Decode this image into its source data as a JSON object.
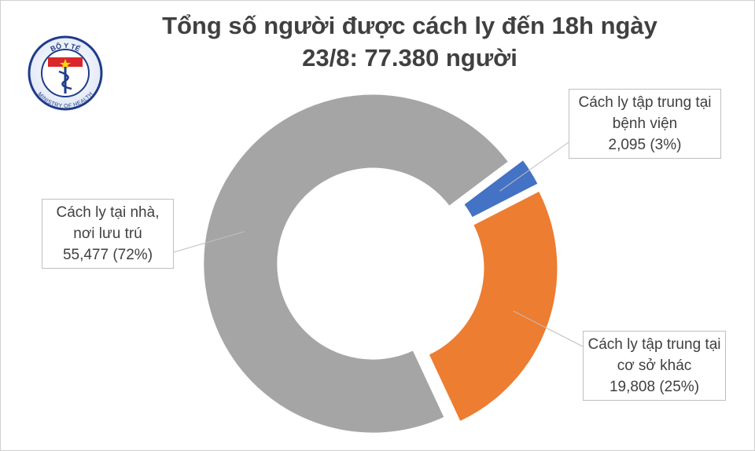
{
  "logo": {
    "top": "BỘ Y TẾ",
    "bottom": "MINISTRY OF HEALTH"
  },
  "chart_data": {
    "type": "pie",
    "donut": true,
    "title": [
      "Tổng số người được cách ly đến 18h ngày",
      "23/8: 77.380 người"
    ],
    "categories": [
      "Cách ly tại nhà, nơi lưu trú",
      "Cách ly tập trung tại bệnh viện",
      "Cách ly tập trung tại cơ sở khác"
    ],
    "values": [
      55477,
      2095,
      19808
    ],
    "value_labels": [
      "55,477 (72%)",
      "2,095 (3%)",
      "19,808 (25%)"
    ],
    "colors": [
      "#a5a5a5",
      "#4472c4",
      "#ed7d31"
    ]
  }
}
